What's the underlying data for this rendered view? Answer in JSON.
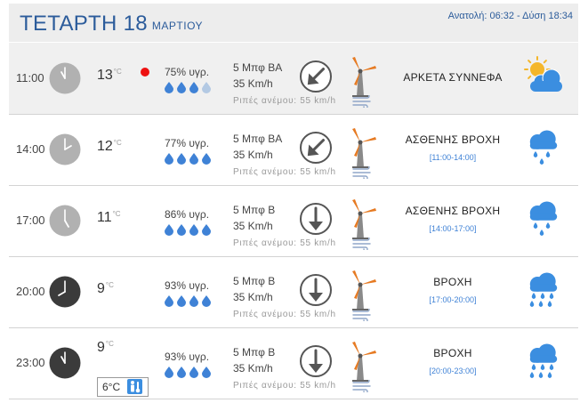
{
  "header": {
    "day": "ΤΕΤΑΡΤΗ 18",
    "month": "ΜΑΡΤΙΟΥ",
    "sun_times": "Ανατολή: 06:32 - Δύση 18:34"
  },
  "unit_celsius": "°C",
  "gust_label": "Ριπές ανέμου: 55 km/h",
  "colors": {
    "accent": "#2c5c9b",
    "drop": "#3f82d6",
    "range": "#3f82d6",
    "alert": "#e11111"
  },
  "rows": [
    {
      "time": "11:00",
      "clock": "light-clock-icon",
      "temp": "13",
      "humidity": "75% υγρ.",
      "drops_filled": 3,
      "wind_force": "5 Μπφ ΒΑ",
      "wind_speed": "35 Km/h",
      "wind_dir": "ΒΑ",
      "condition": "ΑΡΚΕΤΑ ΣΥΝΝΕΦΑ",
      "range": "",
      "icon": "partly-cloudy-icon"
    },
    {
      "time": "14:00",
      "clock": "light-clock-icon",
      "temp": "12",
      "humidity": "77% υγρ.",
      "drops_filled": 4,
      "wind_force": "5 Μπφ ΒΑ",
      "wind_speed": "35 Km/h",
      "wind_dir": "ΒΑ",
      "condition": "ΑΣΘΕΝΗΣ ΒΡΟΧΗ",
      "range": "[11:00-14:00]",
      "icon": "light-rain-icon"
    },
    {
      "time": "17:00",
      "clock": "light-clock-icon",
      "temp": "11",
      "humidity": "86% υγρ.",
      "drops_filled": 4,
      "wind_force": "5 Μπφ Β",
      "wind_speed": "35 Km/h",
      "wind_dir": "Β",
      "condition": "ΑΣΘΕΝΗΣ ΒΡΟΧΗ",
      "range": "[14:00-17:00]",
      "icon": "light-rain-icon"
    },
    {
      "time": "20:00",
      "clock": "dark-clock-icon",
      "temp": "9",
      "humidity": "93% υγρ.",
      "drops_filled": 4,
      "wind_force": "5 Μπφ Β",
      "wind_speed": "35 Km/h",
      "wind_dir": "Β",
      "condition": "ΒΡΟΧΗ",
      "range": "[17:00-20:00]",
      "icon": "rain-icon"
    },
    {
      "time": "23:00",
      "clock": "dark-clock-icon",
      "temp": "9",
      "humidity": "93% υγρ.",
      "drops_filled": 4,
      "wind_force": "5 Μπφ Β",
      "wind_speed": "35 Km/h",
      "wind_dir": "Β",
      "condition": "ΒΡΟΧΗ",
      "range": "[20:00-23:00]",
      "icon": "rain-icon",
      "feels_like": "6°C"
    }
  ]
}
